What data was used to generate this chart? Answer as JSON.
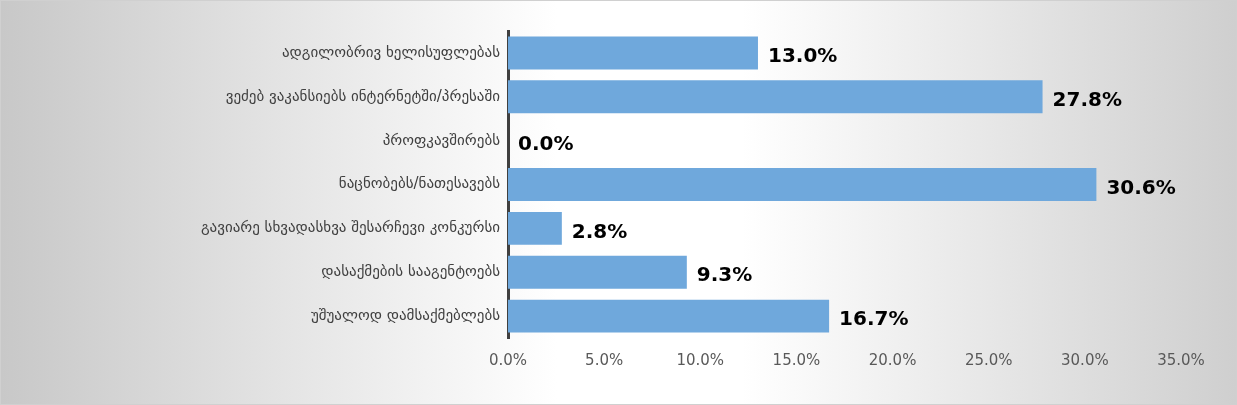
{
  "chart_data": {
    "type": "bar",
    "orientation": "horizontal",
    "categories": [
      "ადგილობრივ ხელისუფლებას",
      "ვეძებ ვაკანსიებს ინტერნეტში/პრესაში",
      "პროფკავშირებს",
      "ნაცნობებს/ნათესავებს",
      "გავიარე სხვადასხვა შესარჩევი კონკურსი",
      "დასაქმების სააგენტოებს",
      "უშუალოდ დამსაქმებლებს"
    ],
    "values": [
      13.0,
      27.8,
      0.0,
      30.6,
      2.8,
      9.3,
      16.7
    ],
    "value_labels": [
      "13.0%",
      "27.8%",
      "0.0%",
      "30.6%",
      "2.8%",
      "9.3%",
      "16.7%"
    ],
    "color": "#6fa8dc",
    "xlim": [
      0,
      35
    ],
    "xticks": [
      {
        "value": 0,
        "label": "0.0%"
      },
      {
        "value": 5,
        "label": "5.0%"
      },
      {
        "value": 10,
        "label": "10.0%"
      },
      {
        "value": 15,
        "label": "15.0%"
      },
      {
        "value": 20,
        "label": "20.0%"
      },
      {
        "value": 25,
        "label": "25.0%"
      },
      {
        "value": 30,
        "label": "30.0%"
      },
      {
        "value": 35,
        "label": "35.0%"
      }
    ],
    "grid": false,
    "legend": false
  }
}
